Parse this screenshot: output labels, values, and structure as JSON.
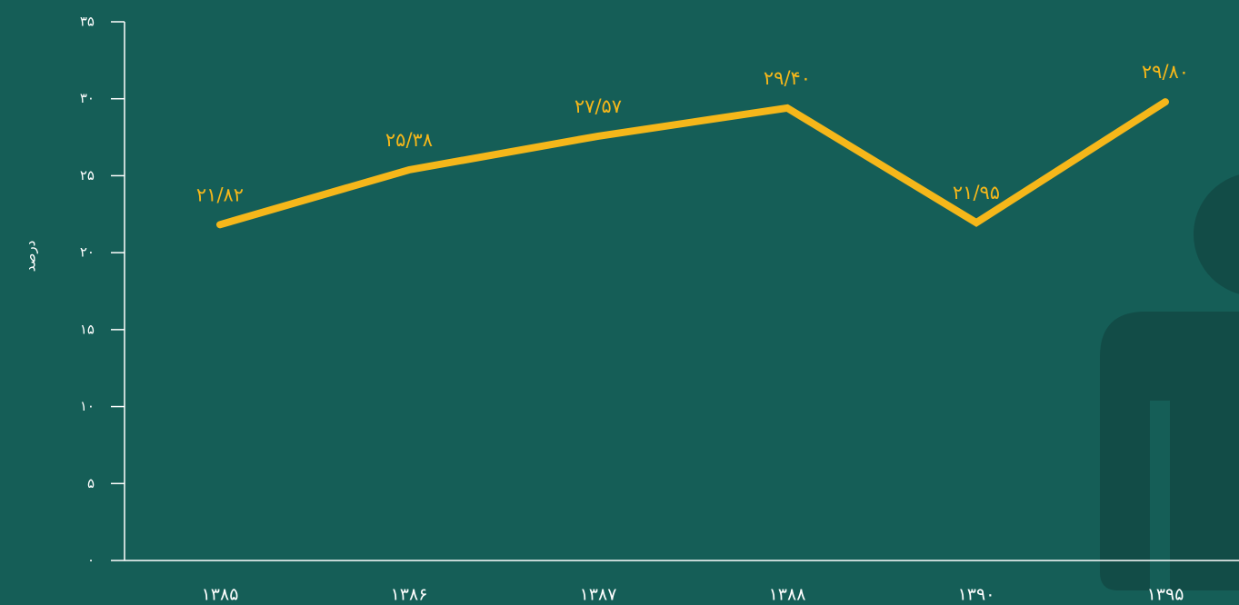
{
  "chart_data": {
    "type": "line",
    "y_label": "درصد",
    "categories": [
      "۱۳۸۵",
      "۱۳۸۶",
      "۱۳۸۷",
      "۱۳۸۸",
      "۱۳۹۰",
      "۱۳۹۵"
    ],
    "values": [
      21.82,
      25.38,
      27.57,
      29.4,
      21.95,
      29.8
    ],
    "value_labels": [
      "۲۱/۸۲",
      "۲۵/۳۸",
      "۲۷/۵۷",
      "۲۹/۴۰",
      "۲۱/۹۵",
      "۲۹/۸۰"
    ],
    "color": "#f5b71a",
    "ylim": [
      0,
      35
    ],
    "yticks": [
      {
        "value": 0,
        "label": "۰"
      },
      {
        "value": 5,
        "label": "۵"
      },
      {
        "value": 10,
        "label": "۱۰"
      },
      {
        "value": 15,
        "label": "۱۵"
      },
      {
        "value": 20,
        "label": "۲۰"
      },
      {
        "value": 25,
        "label": "۲۵"
      },
      {
        "value": 30,
        "label": "۳۰"
      },
      {
        "value": 35,
        "label": "۳۵"
      }
    ],
    "grid": false
  }
}
